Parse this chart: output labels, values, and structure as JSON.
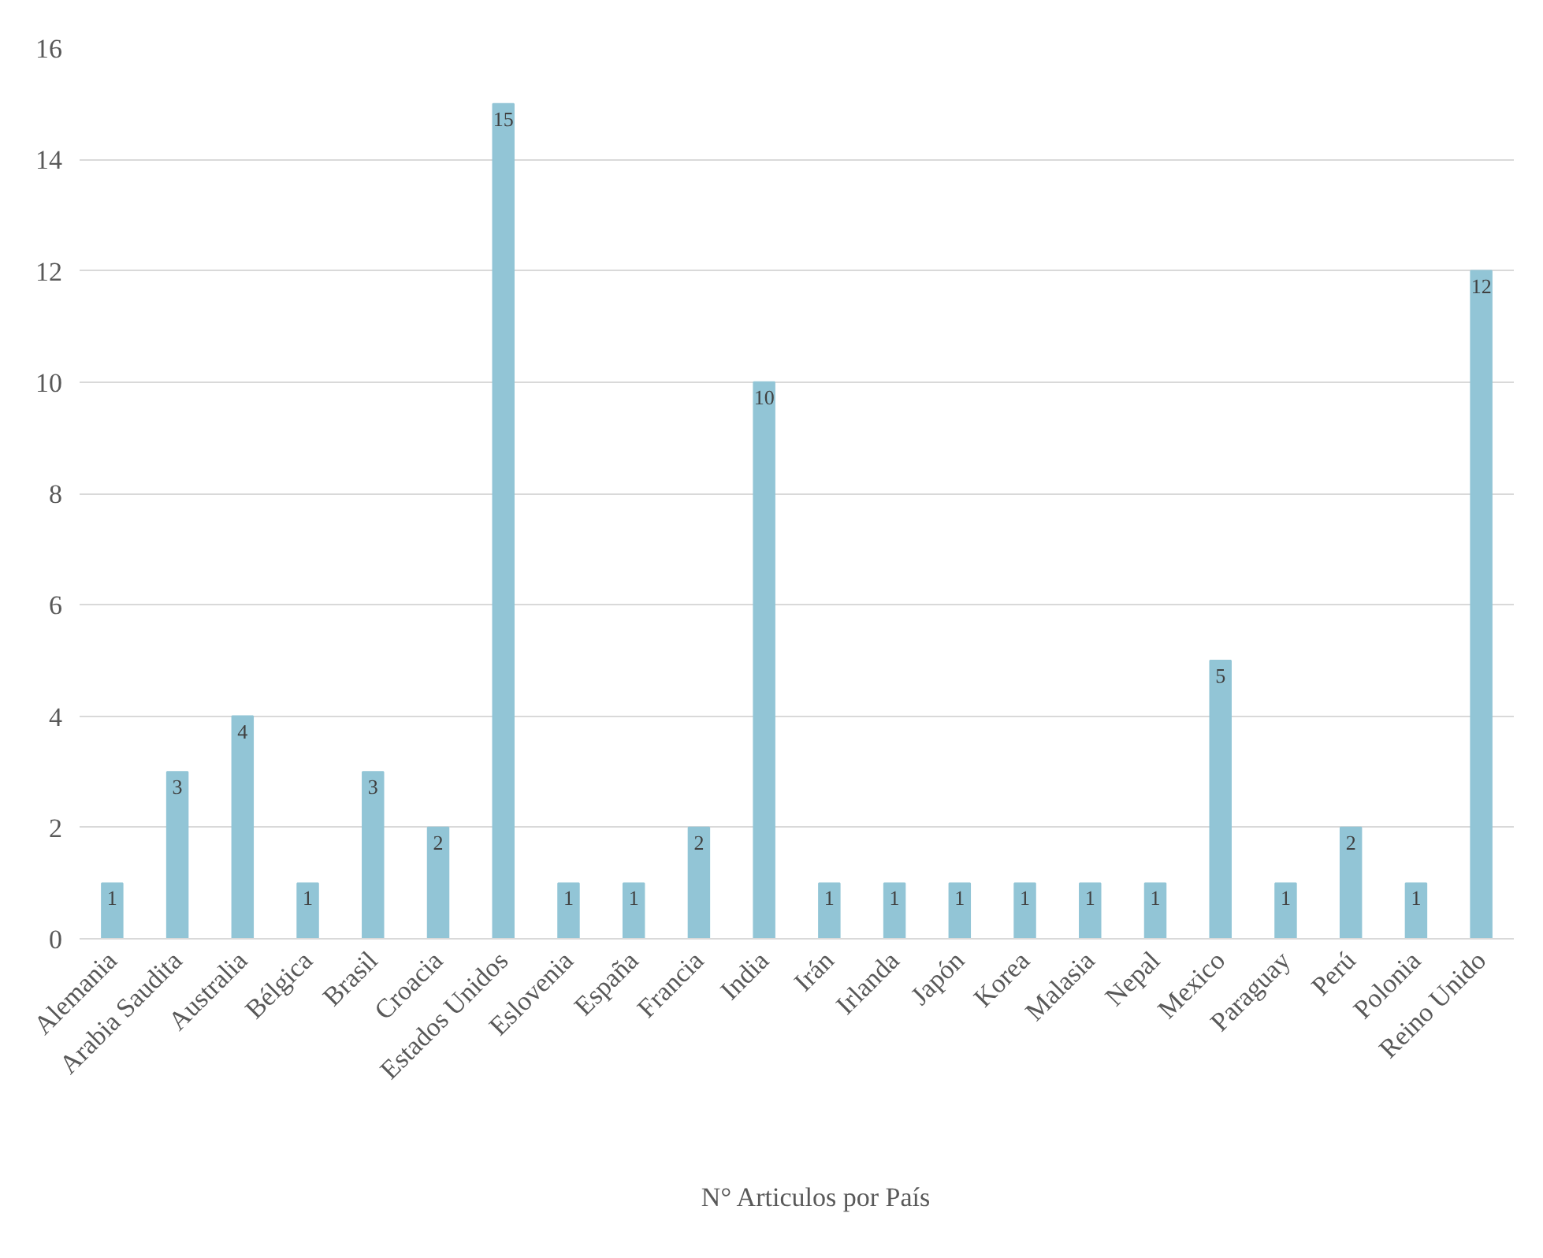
{
  "chart_data": {
    "type": "bar",
    "categories": [
      "Alemania",
      "Arabia Saudita",
      "Australia",
      "Bélgica",
      "Brasil",
      "Croacia",
      "Estados Unidos",
      "Eslovenia",
      "España",
      "Francia",
      "India",
      "Irán",
      "Irlanda",
      "Japón",
      "Korea",
      "Malasia",
      "Nepal",
      "Mexico",
      "Paraguay",
      "Perú",
      "Polonia",
      "Reino Unido"
    ],
    "series": [
      {
        "name": "N° Articulos por País",
        "color": "#92c5d6",
        "values": [
          1,
          3,
          4,
          1,
          3,
          2,
          15,
          1,
          1,
          2,
          10,
          1,
          1,
          1,
          1,
          1,
          1,
          5,
          1,
          2,
          1,
          12
        ]
      }
    ],
    "ylim": [
      0,
      16
    ],
    "yticks": [
      0,
      2,
      4,
      6,
      8,
      10,
      12,
      14,
      16
    ],
    "grid": "y",
    "legend": "bottom",
    "data_labels": true
  }
}
